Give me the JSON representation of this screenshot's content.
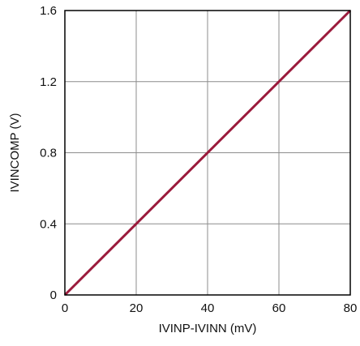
{
  "chart_data": {
    "type": "line",
    "title": "",
    "xlabel": "IVINP-IVINN (mV)",
    "ylabel": "IVINCOMP (V)",
    "xlim": [
      0,
      80
    ],
    "ylim": [
      0,
      1.6
    ],
    "x_ticks": [
      0,
      20,
      40,
      60,
      80
    ],
    "x_tick_labels": [
      "0",
      "20",
      "40",
      "60",
      "80"
    ],
    "y_ticks": [
      0,
      0.4,
      0.8,
      1.2,
      1.6
    ],
    "y_tick_labels": [
      "0",
      "0.4",
      "0.8",
      "1.2",
      "1.6"
    ],
    "grid": true,
    "series": [
      {
        "x": [
          0,
          80
        ],
        "y": [
          0,
          1.6
        ],
        "color": "#9b1b3c"
      }
    ]
  },
  "colors": {
    "line": "#9b1b3c",
    "grid": "#8c8c8c",
    "axis": "#000000"
  }
}
